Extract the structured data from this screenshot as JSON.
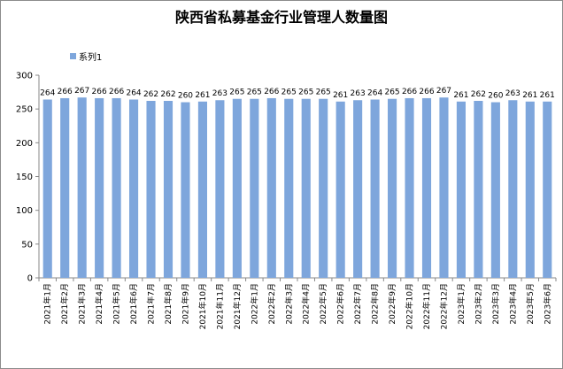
{
  "chart_data": {
    "type": "bar",
    "title": "陕西省私募基金行业管理人数量图",
    "xlabel": "",
    "ylabel": "",
    "ylim": [
      0,
      300
    ],
    "yticks": [
      0,
      50,
      100,
      150,
      200,
      250,
      300
    ],
    "grid": false,
    "legend_position": "top-left",
    "bar_color": "#7ea6dc",
    "categories": [
      "2021年1月",
      "2021年2月",
      "2021年3月",
      "2021年4月",
      "2021年5月",
      "2021年6月",
      "2021年7月",
      "2021年8月",
      "2021年9月",
      "2021年10月",
      "2021年11月",
      "2021年12月",
      "2022年1月",
      "2022年2月",
      "2022年3月",
      "2022年4月",
      "2022年5月",
      "2022年6月",
      "2022年7月",
      "2022年8月",
      "2022年9月",
      "2022年10月",
      "2022年11月",
      "2022年12月",
      "2023年1月",
      "2023年2月",
      "2023年3月",
      "2023年4月",
      "2023年5月",
      "2023年6月"
    ],
    "series": [
      {
        "name": "系列1",
        "values": [
          264,
          266,
          267,
          266,
          266,
          264,
          262,
          262,
          260,
          261,
          263,
          265,
          265,
          266,
          265,
          265,
          265,
          261,
          263,
          264,
          265,
          266,
          266,
          267,
          261,
          262,
          260,
          263,
          261,
          261
        ]
      }
    ]
  }
}
